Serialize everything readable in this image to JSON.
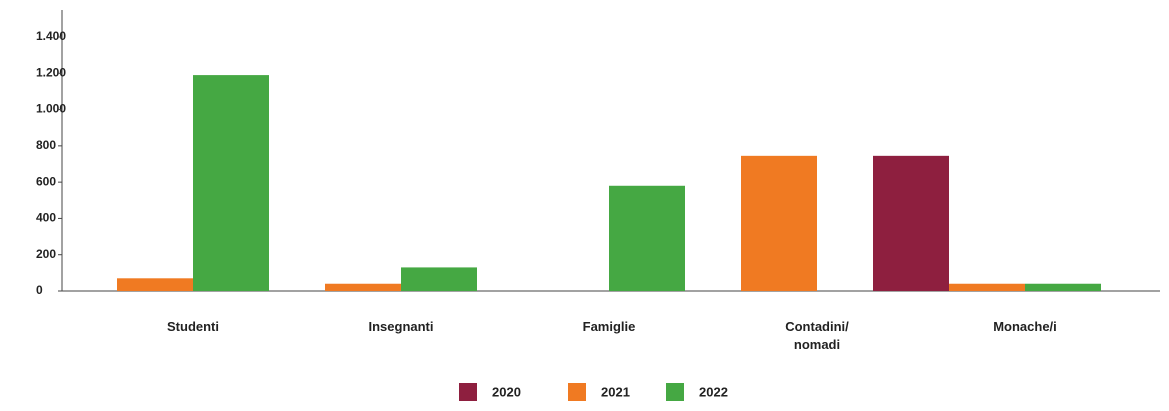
{
  "chart_data": {
    "type": "bar",
    "categories": [
      "Studenti",
      "Insegnanti",
      "Famiglie",
      "Contadini/ nomadi",
      "Monache/i"
    ],
    "series": [
      {
        "name": "2020",
        "color": "#8e1f3f",
        "values": [
          0,
          0,
          0,
          0,
          745
        ]
      },
      {
        "name": "2021",
        "color": "#f07a22",
        "values": [
          70,
          40,
          0,
          745,
          40
        ]
      },
      {
        "name": "2022",
        "color": "#45a843",
        "values": [
          1190,
          130,
          580,
          0,
          40
        ]
      }
    ],
    "ylim": [
      0,
      1400
    ],
    "yticks": [
      0,
      200,
      400,
      600,
      800,
      {
        "value": 1000,
        "label": "1.000"
      },
      {
        "value": 1200,
        "label": "1.200"
      },
      {
        "value": 1400,
        "label": "1.400"
      }
    ],
    "grid": false,
    "legend": "bottom"
  }
}
